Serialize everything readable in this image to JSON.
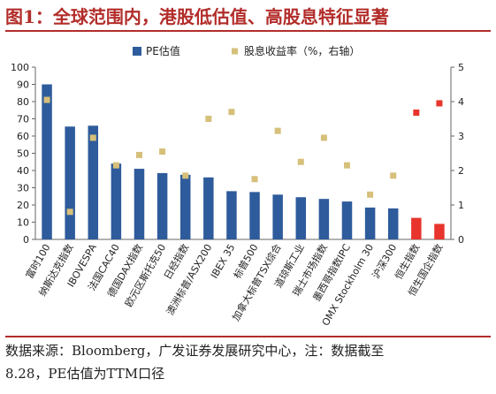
{
  "title": "图1：全球范围内，港股低估值、高股息特征显著",
  "source_lines": [
    "数据来源：Bloomberg，广发证券发展研究中心，注：数据截至",
    "8.28，PE估值为TTM口径"
  ],
  "chart_data": {
    "type": "bar",
    "categories": [
      "富时100",
      "纳斯达克指数",
      "IBOVESPA",
      "法国CAC40",
      "德国DAX指数",
      "欧元区斯托克50",
      "日经指数",
      "澳洲标普/ASX200",
      "IBEX 35",
      "标普500",
      "加拿大标普TSX综合",
      "道琼斯工业",
      "瑞士市场指数",
      "墨西哥指数IPC",
      "OMX Stockholm 30",
      "沪深300",
      "恒生指数",
      "恒生国企指数"
    ],
    "series": [
      {
        "name": "PE估值",
        "kind": "bar",
        "axis": "left",
        "values": [
          90,
          65.5,
          66,
          44,
          41,
          38.5,
          37.5,
          36,
          28,
          27.5,
          26,
          24.5,
          23.5,
          22,
          18.5,
          18,
          12.5,
          9
        ],
        "colors": [
          "#2e5b9b",
          "#2e5b9b",
          "#2e5b9b",
          "#2e5b9b",
          "#2e5b9b",
          "#2e5b9b",
          "#2e5b9b",
          "#2e5b9b",
          "#2e5b9b",
          "#2e5b9b",
          "#2e5b9b",
          "#2e5b9b",
          "#2e5b9b",
          "#2e5b9b",
          "#2e5b9b",
          "#2e5b9b",
          "#e8342c",
          "#e8342c"
        ]
      },
      {
        "name": "股息收益率（%，右轴）",
        "kind": "scatter",
        "axis": "right",
        "values": [
          4.05,
          0.8,
          2.95,
          2.15,
          2.45,
          2.55,
          1.85,
          3.5,
          3.7,
          1.75,
          3.15,
          2.25,
          2.95,
          2.15,
          1.3,
          1.85,
          3.68,
          3.95
        ],
        "colors": [
          "#d6c07a",
          "#d6c07a",
          "#d6c07a",
          "#d6c07a",
          "#d6c07a",
          "#d6c07a",
          "#d6c07a",
          "#d6c07a",
          "#d6c07a",
          "#d6c07a",
          "#d6c07a",
          "#d6c07a",
          "#d6c07a",
          "#d6c07a",
          "#d6c07a",
          "#d6c07a",
          "#e8342c",
          "#e8342c"
        ]
      }
    ],
    "ylim_left": [
      0,
      100
    ],
    "yticks_left": [
      0,
      10,
      20,
      30,
      40,
      50,
      60,
      70,
      80,
      90,
      100
    ],
    "ylim_right": [
      0,
      5
    ],
    "yticks_right": [
      0,
      1,
      2,
      3,
      4,
      5
    ],
    "legend_position": "top"
  }
}
